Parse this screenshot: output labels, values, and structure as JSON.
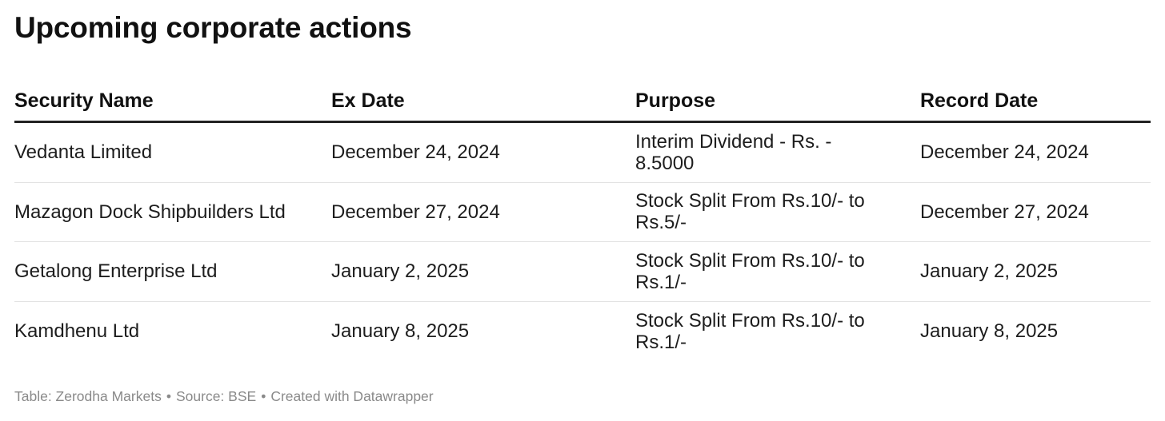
{
  "chart_data": {
    "type": "table",
    "title": "Upcoming corporate actions",
    "columns": [
      "Security Name",
      "Ex Date",
      "Purpose",
      "Record Date"
    ],
    "rows": [
      [
        "Vedanta Limited",
        "December 24, 2024",
        "Interim Dividend - Rs. - 8.5000",
        "December 24, 2024"
      ],
      [
        "Mazagon Dock Shipbuilders Ltd",
        "December 27, 2024",
        "Stock Split From Rs.10/- to Rs.5/-",
        "December 27, 2024"
      ],
      [
        "Getalong Enterprise Ltd",
        "January 2, 2025",
        "Stock Split From Rs.10/- to Rs.1/-",
        "January 2, 2025"
      ],
      [
        "Kamdhenu Ltd",
        "January 8, 2025",
        "Stock Split From Rs.10/- to Rs.1/-",
        "January 8, 2025"
      ]
    ],
    "footer": {
      "table": "Table: Zerodha Markets",
      "source": "Source: BSE",
      "credit": "Created with Datawrapper",
      "separator": "•"
    }
  }
}
